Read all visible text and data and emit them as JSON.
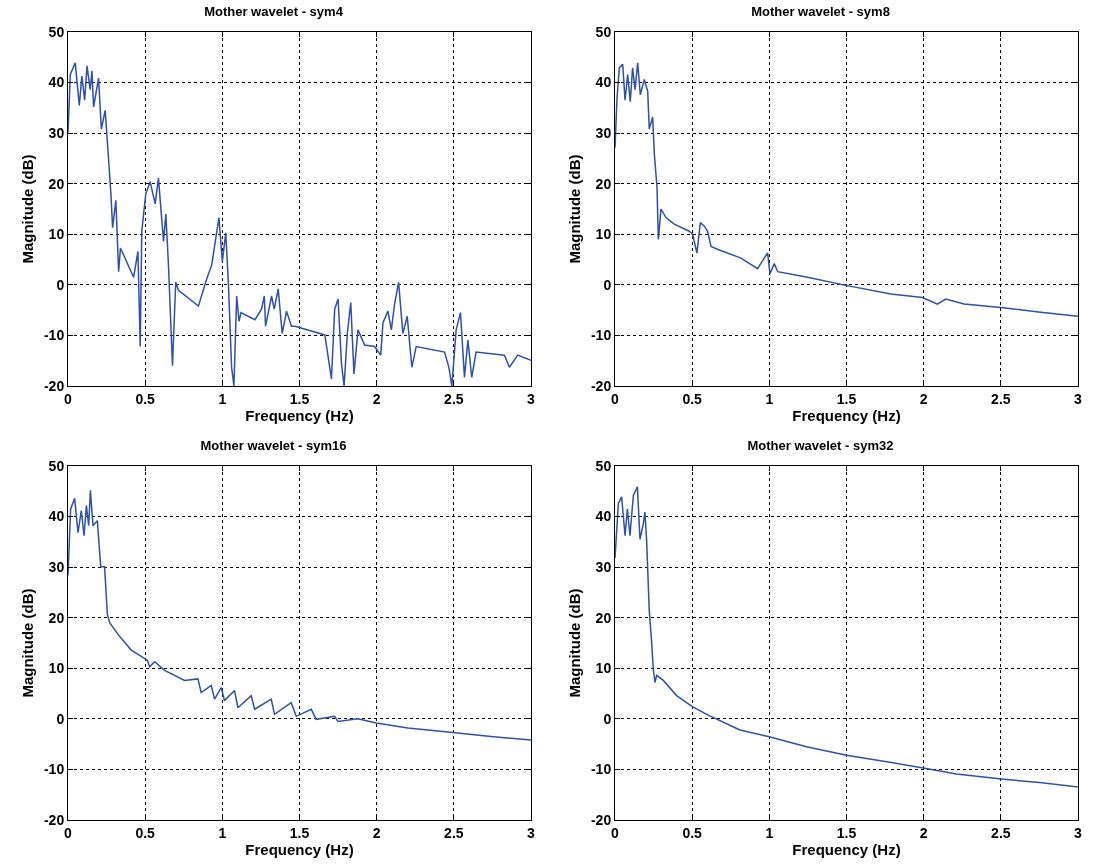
{
  "chart_data": [
    {
      "type": "line",
      "title": "Mother wavelet - sym4",
      "xlabel": "Frequency (Hz)",
      "ylabel": "Magnitude (dB)",
      "xlim": [
        0,
        3
      ],
      "xticks": [
        0,
        0.5,
        1,
        1.5,
        2,
        2.5,
        3
      ],
      "ylim": [
        -20,
        50
      ],
      "yticks": [
        -20,
        -10,
        0,
        10,
        20,
        30,
        40,
        50
      ],
      "grid": true,
      "line_style": "solid",
      "series": [
        {
          "color": "#2f52a6",
          "x": [
            0,
            0.015,
            0.047,
            0.073,
            0.09,
            0.108,
            0.123,
            0.144,
            0.155,
            0.166,
            0.198,
            0.216,
            0.241,
            0.263,
            0.278,
            0.289,
            0.31,
            0.328,
            0.34,
            0.425,
            0.453,
            0.468,
            0.478,
            0.504,
            0.532,
            0.565,
            0.586,
            0.619,
            0.634,
            0.651,
            0.677,
            0.698,
            0.716,
            0.845,
            0.899,
            0.931,
            0.978,
            1.0,
            1.022,
            1.039,
            1.06,
            1.075,
            1.093,
            1.108,
            1.121,
            1.211,
            1.254,
            1.272,
            1.28,
            1.319,
            1.336,
            1.362,
            1.388,
            1.416,
            1.448,
            1.47,
            1.664,
            1.707,
            1.728,
            1.75,
            1.772,
            1.789,
            1.81,
            1.832,
            1.853,
            1.879,
            1.922,
            1.987,
            2.026,
            2.041,
            2.073,
            2.095,
            2.116,
            2.142,
            2.17,
            2.198,
            2.228,
            2.256,
            2.44,
            2.468,
            2.487,
            2.515,
            2.543,
            2.569,
            2.591,
            2.616,
            2.644,
            2.828,
            2.86,
            2.914,
            3.0
          ],
          "values": [
            30.1,
            41.6,
            43.9,
            35.5,
            41.3,
            36.5,
            43.3,
            38.6,
            42.3,
            35.2,
            40.9,
            30.8,
            34.5,
            24.8,
            18.0,
            11.3,
            16.7,
            2.6,
            7.3,
            1.5,
            6.6,
            -12.2,
            10.6,
            18.0,
            20.4,
            16.0,
            21.1,
            8.6,
            14.0,
            3.9,
            -16.0,
            0.5,
            -1.1,
            -4.2,
            1.2,
            3.9,
            13.3,
            4.6,
            10.3,
            0.5,
            -16.3,
            -20,
            -2.2,
            -7.2,
            -5.5,
            -6.9,
            -4.8,
            -2.2,
            -8.2,
            -2.2,
            -4.8,
            -0.8,
            -9.6,
            -5.2,
            -8.2,
            -8.2,
            -9.9,
            -18.6,
            -4.8,
            -2.8,
            -15.6,
            -20,
            -9.6,
            -3.5,
            -17.6,
            -8.9,
            -11.9,
            -12.2,
            -13.9,
            -7.5,
            -5.2,
            -8.9,
            -3.8,
            0.5,
            -9.6,
            -6.2,
            -16.3,
            -12.2,
            -13.3,
            -16.3,
            -20,
            -8.9,
            -5.5,
            -18.3,
            -10.9,
            -18.3,
            -13.3,
            -13.9,
            -16.3,
            -13.9,
            -14.9
          ]
        }
      ]
    },
    {
      "type": "line",
      "title": "Mother wavelet - sym8",
      "xlabel": "Frequency (Hz)",
      "ylabel": "Magnitude (dB)",
      "xlim": [
        0,
        3
      ],
      "xticks": [
        0,
        0.5,
        1,
        1.5,
        2,
        2.5,
        3
      ],
      "ylim": [
        -20,
        50
      ],
      "yticks": [
        -20,
        -10,
        0,
        10,
        20,
        30,
        40,
        50
      ],
      "grid": true,
      "line_style": "solid",
      "series": [
        {
          "color": "#2f52a6",
          "x": [
            0,
            0.013,
            0.028,
            0.05,
            0.065,
            0.082,
            0.099,
            0.114,
            0.13,
            0.147,
            0.164,
            0.19,
            0.212,
            0.222,
            0.244,
            0.255,
            0.272,
            0.281,
            0.298,
            0.33,
            0.384,
            0.481,
            0.503,
            0.531,
            0.553,
            0.579,
            0.6,
            0.622,
            0.676,
            0.816,
            0.924,
            0.967,
            0.989,
            1.004,
            1.032,
            1.054,
            1.248,
            1.496,
            1.787,
            1.992,
            2.089,
            2.143,
            2.262,
            2.499,
            2.758,
            3.0
          ],
          "values": [
            27.1,
            36.9,
            42.9,
            43.6,
            36.5,
            41.6,
            36.2,
            42.9,
            38.6,
            43.9,
            37.6,
            40.6,
            38.2,
            30.8,
            33.2,
            25.8,
            19.4,
            9.0,
            15.0,
            13.3,
            12.0,
            10.6,
            10.0,
            6.3,
            12.3,
            11.6,
            10.6,
            7.6,
            6.9,
            5.3,
            3.2,
            5.3,
            6.3,
            2.2,
            4.2,
            2.6,
            1.5,
            -0.1,
            -1.8,
            -2.5,
            -3.8,
            -2.8,
            -3.8,
            -4.5,
            -5.4,
            -6.2
          ]
        }
      ]
    },
    {
      "type": "line",
      "title": "Mother wavelet - sym16",
      "xlabel": "Frequency (Hz)",
      "ylabel": "Magnitude (dB)",
      "xlim": [
        0,
        3
      ],
      "xticks": [
        0,
        0.5,
        1,
        1.5,
        2,
        2.5,
        3
      ],
      "ylim": [
        -20,
        50
      ],
      "yticks": [
        -20,
        -10,
        0,
        10,
        20,
        30,
        40,
        50
      ],
      "grid": true,
      "line_style": "solid",
      "series": [
        {
          "color": "#2f52a6",
          "x": [
            0,
            0.017,
            0.043,
            0.065,
            0.086,
            0.104,
            0.119,
            0.134,
            0.145,
            0.162,
            0.19,
            0.212,
            0.237,
            0.255,
            0.27,
            0.324,
            0.41,
            0.514,
            0.529,
            0.561,
            0.626,
            0.755,
            0.842,
            0.863,
            0.928,
            0.95,
            0.993,
            1.014,
            1.079,
            1.101,
            1.187,
            1.209,
            1.317,
            1.338,
            1.446,
            1.479,
            1.576,
            1.608,
            1.727,
            1.749,
            1.878,
            1.997,
            2.202,
            2.493,
            2.741,
            3.0
          ],
          "values": [
            28.4,
            41.5,
            43.6,
            36.8,
            41.2,
            36.2,
            42.2,
            38.2,
            45.2,
            38.2,
            39.2,
            30.1,
            30.1,
            20.7,
            19.0,
            16.7,
            13.6,
            11.6,
            10.3,
            11.3,
            9.6,
            7.6,
            7.9,
            5.2,
            6.6,
            3.9,
            6.2,
            3.6,
            5.6,
            2.2,
            4.6,
            1.9,
            3.9,
            0.9,
            3.2,
            0.5,
            1.9,
            -0.1,
            0.5,
            -0.5,
            0.0,
            -0.8,
            -1.8,
            -2.7,
            -3.5,
            -4.2
          ]
        }
      ]
    },
    {
      "type": "line",
      "title": "Mother wavelet - sym32",
      "xlabel": "Frequency (Hz)",
      "ylabel": "Magnitude (dB)",
      "xlim": [
        0,
        3
      ],
      "xticks": [
        0,
        0.5,
        1,
        1.5,
        2,
        2.5,
        3
      ],
      "ylim": [
        -20,
        50
      ],
      "yticks": [
        -20,
        -10,
        0,
        10,
        20,
        30,
        40,
        50
      ],
      "grid": true,
      "line_style": "solid",
      "series": [
        {
          "color": "#2f52a6",
          "x": [
            0,
            0.022,
            0.043,
            0.065,
            0.08,
            0.097,
            0.119,
            0.145,
            0.162,
            0.183,
            0.194,
            0.205,
            0.222,
            0.237,
            0.248,
            0.259,
            0.27,
            0.313,
            0.399,
            0.496,
            0.594,
            0.809,
            0.993,
            1.241,
            1.5,
            1.781,
            1.997,
            2.212,
            2.504,
            2.752,
            3.0
          ],
          "values": [
            31.8,
            42.6,
            43.9,
            36.2,
            41.5,
            36.2,
            44.2,
            45.9,
            35.5,
            38.5,
            40.9,
            35.2,
            21.4,
            15.3,
            9.9,
            7.2,
            8.6,
            7.6,
            4.6,
            2.5,
            0.9,
            -2.2,
            -3.5,
            -5.5,
            -7.2,
            -8.6,
            -9.7,
            -10.9,
            -11.9,
            -12.6,
            -13.5
          ]
        }
      ]
    }
  ]
}
